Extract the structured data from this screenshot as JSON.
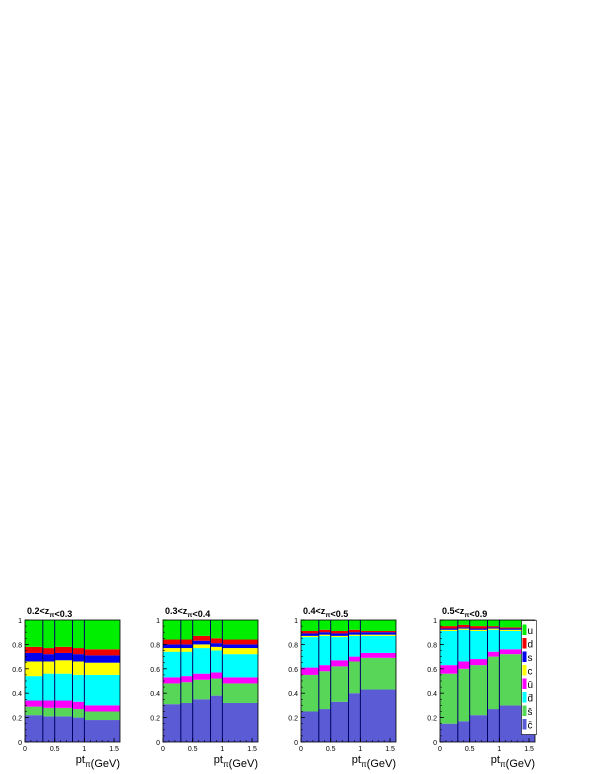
{
  "chart_data": [
    {
      "type": "bar",
      "stacked": true,
      "title": "0.2<z_π<0.3",
      "xlabel": "pt_π(GeV)",
      "ylabel": "",
      "xlim": [
        0,
        1.6
      ],
      "ylim": [
        0,
        1
      ],
      "x_ticks": [
        "0",
        "0.5",
        "1",
        "1.5"
      ],
      "y_ticks": [
        "0",
        "0.2",
        "0.4",
        "0.6",
        "0.8",
        "1"
      ],
      "bin_edges": [
        0,
        0.3,
        0.5,
        0.8,
        1.0,
        1.6
      ],
      "series": [
        {
          "name": "c̄",
          "color": "#5b5bd6",
          "values": [
            0.22,
            0.21,
            0.21,
            0.2,
            0.18
          ]
        },
        {
          "name": "s̄",
          "color": "#57d657",
          "values": [
            0.07,
            0.07,
            0.07,
            0.07,
            0.07
          ]
        },
        {
          "name": "ū",
          "color": "#ff00ff",
          "values": [
            0.05,
            0.06,
            0.06,
            0.06,
            0.05
          ]
        },
        {
          "name": "d̄",
          "color": "#00ffff",
          "values": [
            0.2,
            0.22,
            0.22,
            0.22,
            0.25
          ]
        },
        {
          "name": "c",
          "color": "#ffff00",
          "values": [
            0.12,
            0.1,
            0.11,
            0.11,
            0.1
          ]
        },
        {
          "name": "s",
          "color": "#0000ee",
          "values": [
            0.07,
            0.06,
            0.06,
            0.06,
            0.06
          ]
        },
        {
          "name": "d",
          "color": "#ee0000",
          "values": [
            0.05,
            0.05,
            0.05,
            0.05,
            0.05
          ]
        },
        {
          "name": "u",
          "color": "#00ee00",
          "values": [
            0.22,
            0.23,
            0.22,
            0.23,
            0.24
          ]
        }
      ]
    },
    {
      "type": "bar",
      "stacked": true,
      "title": "0.3<z_π<0.4",
      "xlabel": "pt_π(GeV)",
      "ylabel": "",
      "xlim": [
        0,
        1.6
      ],
      "ylim": [
        0,
        1
      ],
      "x_ticks": [
        "0",
        "0.5",
        "1",
        "1.5"
      ],
      "y_ticks": [
        "0",
        "0.2",
        "0.4",
        "0.6",
        "0.8",
        "1"
      ],
      "bin_edges": [
        0,
        0.3,
        0.5,
        0.8,
        1.0,
        1.6
      ],
      "series": [
        {
          "name": "c̄",
          "color": "#5b5bd6",
          "values": [
            0.31,
            0.32,
            0.35,
            0.38,
            0.32
          ]
        },
        {
          "name": "s̄",
          "color": "#57d657",
          "values": [
            0.17,
            0.17,
            0.16,
            0.14,
            0.16
          ]
        },
        {
          "name": "ū",
          "color": "#ff00ff",
          "values": [
            0.05,
            0.05,
            0.05,
            0.05,
            0.05
          ]
        },
        {
          "name": "d̄",
          "color": "#00ffff",
          "values": [
            0.21,
            0.2,
            0.21,
            0.18,
            0.19
          ]
        },
        {
          "name": "c",
          "color": "#ffff00",
          "values": [
            0.03,
            0.03,
            0.03,
            0.03,
            0.05
          ]
        },
        {
          "name": "s",
          "color": "#0000ee",
          "values": [
            0.03,
            0.03,
            0.03,
            0.03,
            0.03
          ]
        },
        {
          "name": "d",
          "color": "#ee0000",
          "values": [
            0.04,
            0.04,
            0.04,
            0.04,
            0.04
          ]
        },
        {
          "name": "u",
          "color": "#00ee00",
          "values": [
            0.16,
            0.16,
            0.13,
            0.15,
            0.16
          ]
        }
      ]
    },
    {
      "type": "bar",
      "stacked": true,
      "title": "0.4<z_π<0.5",
      "xlabel": "pt_π(GeV)",
      "ylabel": "",
      "xlim": [
        0,
        1.6
      ],
      "ylim": [
        0,
        1
      ],
      "x_ticks": [
        "0",
        "0.5",
        "1",
        "1.5"
      ],
      "y_ticks": [
        "0",
        "0.2",
        "0.4",
        "0.6",
        "0.8",
        "1"
      ],
      "bin_edges": [
        0,
        0.3,
        0.5,
        0.8,
        1.0,
        1.6
      ],
      "series": [
        {
          "name": "c̄",
          "color": "#5b5bd6",
          "values": [
            0.25,
            0.27,
            0.33,
            0.4,
            0.43
          ]
        },
        {
          "name": "s̄",
          "color": "#57d657",
          "values": [
            0.3,
            0.31,
            0.29,
            0.26,
            0.26
          ]
        },
        {
          "name": "ū",
          "color": "#ff00ff",
          "values": [
            0.06,
            0.05,
            0.05,
            0.04,
            0.04
          ]
        },
        {
          "name": "d̄",
          "color": "#00ffff",
          "values": [
            0.25,
            0.24,
            0.19,
            0.17,
            0.14
          ]
        },
        {
          "name": "c",
          "color": "#ffff00",
          "values": [
            0.01,
            0.01,
            0.01,
            0.01,
            0.01
          ]
        },
        {
          "name": "s",
          "color": "#0000ee",
          "values": [
            0.02,
            0.02,
            0.02,
            0.02,
            0.02
          ]
        },
        {
          "name": "d",
          "color": "#ee0000",
          "values": [
            0.02,
            0.02,
            0.02,
            0.02,
            0.01
          ]
        },
        {
          "name": "u",
          "color": "#00ee00",
          "values": [
            0.09,
            0.08,
            0.09,
            0.08,
            0.09
          ]
        }
      ]
    },
    {
      "type": "bar",
      "stacked": true,
      "title": "0.5<z_π<0.9",
      "xlabel": "pt_π(GeV)",
      "ylabel": "",
      "xlim": [
        0,
        1.6
      ],
      "ylim": [
        0,
        1
      ],
      "x_ticks": [
        "0",
        "0.5",
        "1",
        "1.5"
      ],
      "y_ticks": [
        "0",
        "0.2",
        "0.4",
        "0.6",
        "0.8",
        "1"
      ],
      "bin_edges": [
        0,
        0.3,
        0.5,
        0.8,
        1.0,
        1.6
      ],
      "legend": [
        "u",
        "d",
        "s",
        "c",
        "ū",
        "d̄",
        "s̄",
        "c̄"
      ],
      "legend_position": "right",
      "series": [
        {
          "name": "c̄",
          "color": "#5b5bd6",
          "values": [
            0.15,
            0.17,
            0.22,
            0.27,
            0.3
          ]
        },
        {
          "name": "s̄",
          "color": "#57d657",
          "values": [
            0.41,
            0.43,
            0.41,
            0.43,
            0.42
          ]
        },
        {
          "name": "ū",
          "color": "#ff00ff",
          "values": [
            0.07,
            0.06,
            0.05,
            0.04,
            0.04
          ]
        },
        {
          "name": "d̄",
          "color": "#00ffff",
          "values": [
            0.28,
            0.26,
            0.23,
            0.18,
            0.15
          ]
        },
        {
          "name": "c",
          "color": "#ffff00",
          "values": [
            0.01,
            0.01,
            0.01,
            0.01,
            0.01
          ]
        },
        {
          "name": "s",
          "color": "#0000ee",
          "values": [
            0.01,
            0.01,
            0.01,
            0.01,
            0.01
          ]
        },
        {
          "name": "d",
          "color": "#ee0000",
          "values": [
            0.02,
            0.02,
            0.02,
            0.01,
            0.01
          ]
        },
        {
          "name": "u",
          "color": "#00ee00",
          "values": [
            0.05,
            0.04,
            0.05,
            0.05,
            0.06
          ]
        }
      ]
    }
  ]
}
